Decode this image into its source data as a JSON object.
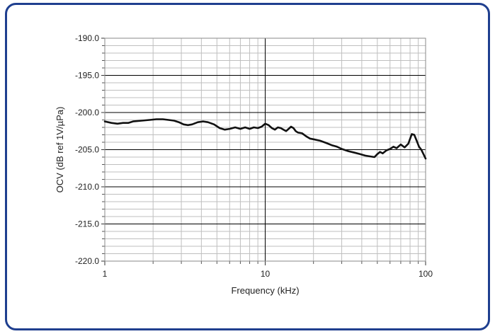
{
  "colors": {
    "frame_border": "#1f3f8f",
    "series_line": "#111111",
    "major_grid": "#000000",
    "minor_grid": "#bfbfbf",
    "plot_background": "#ffffff"
  },
  "chart_data": {
    "type": "line",
    "title": "",
    "xlabel": "Frequency (kHz)",
    "ylabel": "OCV (dB ref 1V/µPa)",
    "x_scale": "log",
    "xlim": [
      1,
      100
    ],
    "ylim": [
      -220,
      -190
    ],
    "x_ticks": [
      1,
      10,
      100
    ],
    "x_tick_labels": [
      "1",
      "10",
      "100"
    ],
    "y_ticks": [
      -190,
      -195,
      -200,
      -205,
      -210,
      -215,
      -220
    ],
    "y_tick_labels": [
      "-190.0",
      "-195.0",
      "-200.0",
      "-205.0",
      "-210.0",
      "-215.0",
      "-220.0"
    ],
    "grid": true,
    "legend": "none",
    "series": [
      {
        "x": [
          1.0,
          1.1,
          1.2,
          1.3,
          1.4,
          1.5,
          1.7,
          1.9,
          2.1,
          2.3,
          2.5,
          2.7,
          2.9,
          3.1,
          3.3,
          3.5,
          3.8,
          4.1,
          4.4,
          4.8,
          5.2,
          5.6,
          6.0,
          6.5,
          7.0,
          7.5,
          8.0,
          8.5,
          9.0,
          9.5,
          10.0,
          10.5,
          11.0,
          11.5,
          12.0,
          12.5,
          13.0,
          13.5,
          14.0,
          14.5,
          15.0,
          15.5,
          16.0,
          17.0,
          18.0,
          19.0,
          20.0,
          22.0,
          24.0,
          26.0,
          28.0,
          30.0,
          33.0,
          36.0,
          39.0,
          42.0,
          45.0,
          48.0,
          50.0,
          52.0,
          54.0,
          57.0,
          60.0,
          63.0,
          66.0,
          70.0,
          74.0,
          78.0,
          82.0,
          85.0,
          88.0,
          91.0,
          94.0,
          97.0,
          100.0
        ],
        "y": [
          -201.2,
          -201.4,
          -201.5,
          -201.4,
          -201.4,
          -201.2,
          -201.1,
          -201.0,
          -200.9,
          -200.9,
          -201.0,
          -201.1,
          -201.3,
          -201.6,
          -201.7,
          -201.6,
          -201.3,
          -201.2,
          -201.3,
          -201.6,
          -202.1,
          -202.3,
          -202.2,
          -202.0,
          -202.2,
          -202.0,
          -202.2,
          -202.0,
          -202.1,
          -201.9,
          -201.5,
          -201.7,
          -202.1,
          -202.3,
          -202.0,
          -202.1,
          -202.3,
          -202.5,
          -202.2,
          -201.9,
          -202.1,
          -202.5,
          -202.7,
          -202.8,
          -203.2,
          -203.5,
          -203.6,
          -203.8,
          -204.1,
          -204.4,
          -204.6,
          -204.9,
          -205.2,
          -205.4,
          -205.6,
          -205.8,
          -205.9,
          -206.0,
          -205.6,
          -205.3,
          -205.5,
          -205.1,
          -204.9,
          -204.6,
          -204.8,
          -204.3,
          -204.7,
          -204.2,
          -202.9,
          -203.0,
          -203.8,
          -204.6,
          -205.0,
          -205.6,
          -206.2
        ]
      }
    ]
  }
}
